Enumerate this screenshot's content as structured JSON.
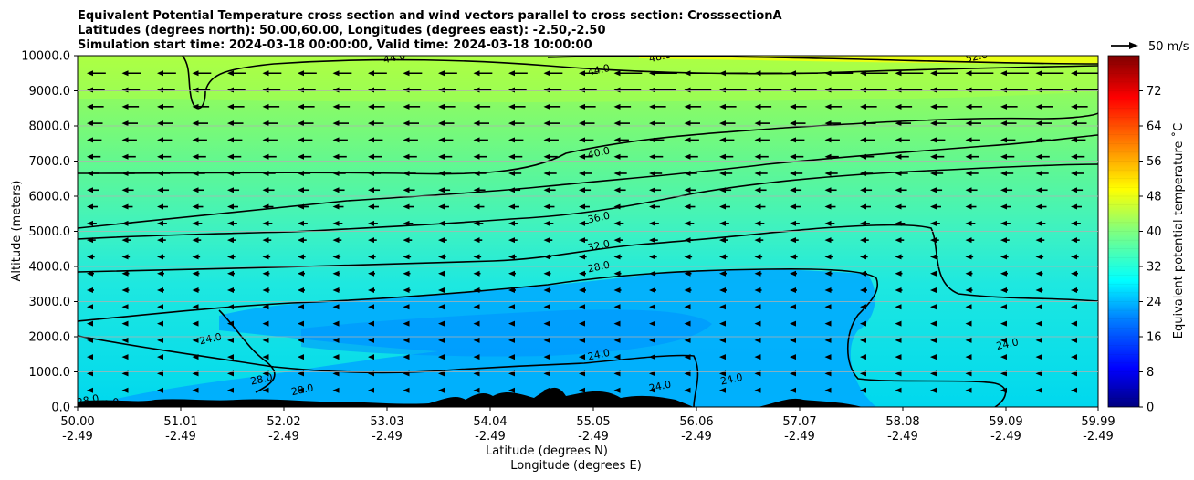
{
  "chart_data": {
    "type": "heatmap",
    "title_lines": [
      "Equivalent Potential Temperature cross section and wind vectors parallel to cross section: CrosssectionA",
      "Latitudes (degrees north): 50.00,60.00, Longitudes (degrees east): -2.50,-2.50",
      "Simulation start time: 2024-03-18 00:00:00, Valid time: 2024-03-18 10:00:00"
    ],
    "ylabel": "Altitude (meters)",
    "xlabel_lines": [
      "Latitude (degrees N)",
      "Longitude (degrees E)"
    ],
    "ylim": [
      0,
      10000
    ],
    "xlim": [
      50.0,
      59.99
    ],
    "yticks": [
      0,
      1000,
      2000,
      3000,
      4000,
      5000,
      6000,
      7000,
      8000,
      9000,
      10000
    ],
    "ytick_labels": [
      "0.0",
      "1000.0",
      "2000.0",
      "3000.0",
      "4000.0",
      "5000.0",
      "6000.0",
      "7000.0",
      "8000.0",
      "9000.0",
      "10000.0"
    ],
    "xticks": [
      {
        "lat": "50.00",
        "lon": "-2.49"
      },
      {
        "lat": "51.01",
        "lon": "-2.49"
      },
      {
        "lat": "52.02",
        "lon": "-2.49"
      },
      {
        "lat": "53.03",
        "lon": "-2.49"
      },
      {
        "lat": "54.04",
        "lon": "-2.49"
      },
      {
        "lat": "55.05",
        "lon": "-2.49"
      },
      {
        "lat": "56.06",
        "lon": "-2.49"
      },
      {
        "lat": "57.07",
        "lon": "-2.49"
      },
      {
        "lat": "58.08",
        "lon": "-2.49"
      },
      {
        "lat": "59.09",
        "lon": "-2.49"
      },
      {
        "lat": "59.99",
        "lon": "-2.49"
      }
    ],
    "grid": "horizontal",
    "colorbar": {
      "label": "Equivalent potential temperature ˚C",
      "range": [
        0,
        80
      ],
      "ticks": [
        "0",
        "8",
        "16",
        "24",
        "32",
        "40",
        "48",
        "56",
        "64",
        "72"
      ],
      "colormap": [
        "#00007f",
        "#0000ff",
        "#007fff",
        "#00ffff",
        "#7fff7f",
        "#ffff00",
        "#ff7f00",
        "#ff0000",
        "#7f0000"
      ]
    },
    "quiver_key": {
      "label": "50 m/s"
    },
    "contours": [
      {
        "level": "24.0",
        "label_positions": [
          [
            55.1,
            1500
          ],
          [
            56.4,
            800
          ],
          [
            59.1,
            1800
          ],
          [
            51.3,
            1950
          ],
          [
            55.7,
            600
          ]
        ]
      },
      {
        "level": "28.0",
        "label_positions": [
          [
            55.1,
            4000
          ],
          [
            51.8,
            800
          ],
          [
            52.2,
            500
          ],
          [
            50.1,
            200
          ],
          [
            50.3,
            100
          ]
        ]
      },
      {
        "level": "32.0",
        "label_positions": [
          [
            55.1,
            4600
          ]
        ]
      },
      {
        "level": "36.0",
        "label_positions": [
          [
            55.1,
            5400
          ]
        ]
      },
      {
        "level": "40.0",
        "label_positions": [
          [
            55.1,
            7250
          ]
        ]
      },
      {
        "level": "44.0",
        "label_positions": [
          [
            55.1,
            9600
          ],
          [
            53.1,
            9950
          ]
        ]
      },
      {
        "level": "48.0",
        "label_positions": [
          [
            55.7,
            9980
          ]
        ]
      },
      {
        "level": "52.0",
        "label_positions": [
          [
            58.8,
            9980
          ]
        ]
      }
    ],
    "colors": {
      "background_field": "#1ee8e8",
      "terrain": "#000000"
    }
  }
}
